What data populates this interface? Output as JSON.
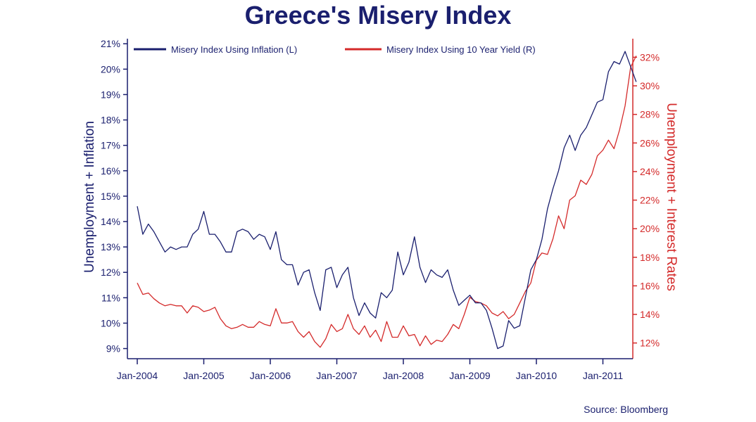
{
  "chart_data": {
    "type": "line",
    "title": "Greece's Misery Index",
    "xlabel": "",
    "ylabel_left": "Unemployment + Inflation",
    "ylabel_right": "Unemployment + Interest Rates",
    "source": "Source: Bloomberg",
    "x_ticks": [
      "Jan-2004",
      "Jan-2005",
      "Jan-2006",
      "Jan-2007",
      "Jan-2008",
      "Jan-2009",
      "Jan-2010",
      "Jan-2011"
    ],
    "ylim_left": [
      8.6,
      21.2
    ],
    "ylim_right": [
      10.9,
      33.3
    ],
    "yticks_left": [
      "9%",
      "10%",
      "11%",
      "12%",
      "13%",
      "14%",
      "15%",
      "16%",
      "17%",
      "18%",
      "19%",
      "20%",
      "21%"
    ],
    "yticks_right": [
      "12%",
      "14%",
      "16%",
      "18%",
      "20%",
      "22%",
      "24%",
      "26%",
      "28%",
      "30%",
      "32%"
    ],
    "x_start": 2004.0,
    "x_step_months": 1,
    "series": [
      {
        "name": "Misery Index Using Inflation (L)",
        "axis": "left",
        "color": "#1a1f6e",
        "values": [
          14.6,
          13.5,
          13.9,
          13.6,
          13.2,
          12.8,
          13.0,
          12.9,
          13.0,
          13.0,
          13.5,
          13.7,
          14.4,
          13.5,
          13.5,
          13.2,
          12.8,
          12.8,
          13.6,
          13.7,
          13.6,
          13.3,
          13.5,
          13.4,
          12.9,
          13.6,
          12.5,
          12.3,
          12.3,
          11.5,
          12.0,
          12.1,
          11.2,
          10.5,
          12.1,
          12.2,
          11.4,
          11.9,
          12.2,
          11.0,
          10.3,
          10.8,
          10.4,
          10.2,
          11.2,
          11.0,
          11.3,
          12.8,
          11.9,
          12.4,
          13.4,
          12.2,
          11.6,
          12.1,
          11.9,
          11.8,
          12.1,
          11.3,
          10.7,
          10.9,
          11.1,
          10.8,
          10.8,
          10.5,
          9.8,
          9.0,
          9.1,
          10.1,
          9.8,
          9.9,
          11.0,
          12.1,
          12.5,
          13.3,
          14.5,
          15.3,
          16.0,
          16.9,
          17.4,
          16.8,
          17.4,
          17.7,
          18.2,
          18.7,
          18.8,
          19.9,
          20.3,
          20.2,
          20.7,
          20.1,
          19.5
        ]
      },
      {
        "name": "Misery Index Using 10 Year Yield (R)",
        "axis": "right",
        "color": "#d42a2a",
        "values": [
          16.2,
          15.4,
          15.5,
          15.1,
          14.8,
          14.6,
          14.7,
          14.6,
          14.6,
          14.1,
          14.6,
          14.5,
          14.2,
          14.3,
          14.5,
          13.7,
          13.2,
          13.0,
          13.1,
          13.3,
          13.1,
          13.1,
          13.5,
          13.3,
          13.2,
          14.4,
          13.4,
          13.4,
          13.5,
          12.8,
          12.4,
          12.8,
          12.1,
          11.7,
          12.3,
          13.3,
          12.8,
          13.0,
          14.0,
          13.0,
          12.6,
          13.2,
          12.4,
          12.9,
          12.1,
          13.5,
          12.4,
          12.4,
          13.2,
          12.5,
          12.6,
          11.8,
          12.5,
          11.9,
          12.2,
          12.1,
          12.6,
          13.3,
          13.0,
          14.0,
          15.2,
          14.9,
          14.8,
          14.6,
          14.1,
          13.9,
          14.2,
          13.7,
          14.0,
          14.8,
          15.6,
          16.2,
          17.8,
          18.3,
          18.2,
          19.3,
          20.9,
          20.0,
          22.0,
          22.3,
          23.4,
          23.1,
          23.8,
          25.1,
          25.5,
          26.2,
          25.6,
          26.9,
          28.6,
          31.3,
          32.1
        ]
      }
    ]
  }
}
